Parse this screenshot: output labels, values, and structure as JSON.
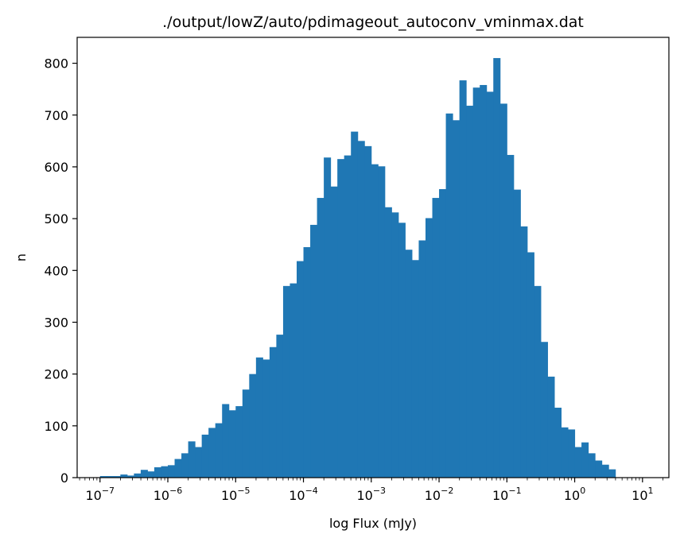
{
  "chart_data": {
    "type": "bar",
    "title": "./output/lowZ/auto/pdimageout_autoconv_vminmax.dat",
    "xlabel": "log Flux (mJy)",
    "ylabel": "n",
    "x_scale": "log",
    "xlim": [
      4.6e-08,
      24.5
    ],
    "ylim": [
      0,
      850
    ],
    "grid": false,
    "color": "#1f77b4",
    "x_ticks": [
      {
        "base": "10",
        "exp": "−7"
      },
      {
        "base": "10",
        "exp": "−6"
      },
      {
        "base": "10",
        "exp": "−5"
      },
      {
        "base": "10",
        "exp": "−4"
      },
      {
        "base": "10",
        "exp": "−3"
      },
      {
        "base": "10",
        "exp": "−2"
      },
      {
        "base": "10",
        "exp": "−1"
      },
      {
        "base": "10",
        "exp": "0"
      },
      {
        "base": "10",
        "exp": "1"
      }
    ],
    "y_ticks": [
      "0",
      "100",
      "200",
      "300",
      "400",
      "500",
      "600",
      "700",
      "800"
    ],
    "log10_range": [
      -7.0,
      1.0
    ],
    "bin_count": 80,
    "counts": [
      3,
      3,
      3,
      6,
      4,
      8,
      15,
      12,
      20,
      22,
      24,
      36,
      47,
      70,
      59,
      83,
      96,
      105,
      142,
      130,
      138,
      170,
      200,
      232,
      228,
      252,
      276,
      370,
      375,
      418,
      445,
      488,
      540,
      618,
      562,
      615,
      622,
      668,
      650,
      640,
      605,
      601,
      522,
      512,
      492,
      440,
      420,
      458,
      501,
      540,
      557,
      703,
      690,
      767,
      718,
      753,
      758,
      745,
      810,
      722,
      623,
      556,
      485,
      435,
      370,
      262,
      195,
      135,
      97,
      93,
      59,
      68,
      47,
      33,
      25,
      16,
      0,
      0,
      0,
      0
    ]
  }
}
